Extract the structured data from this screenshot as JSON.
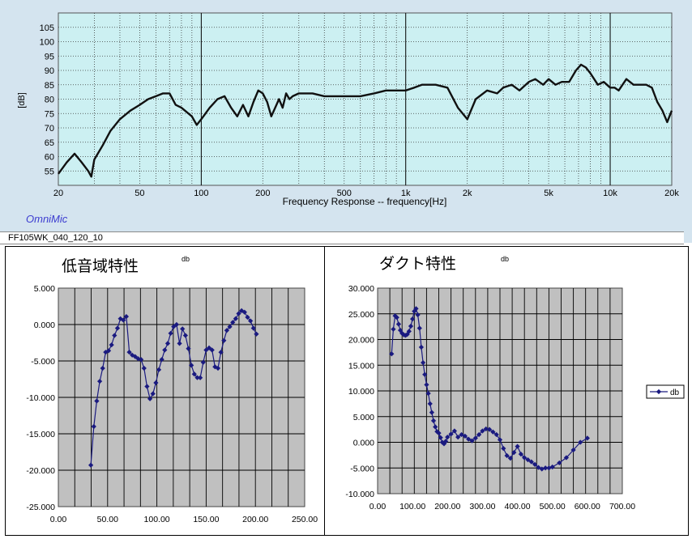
{
  "top": {
    "status_text": "FF105WK_040_120_10",
    "brand": "OmniMic",
    "colors": {
      "panel": "#d4e4ef",
      "plot_bg": "#ccf0f2",
      "curve": "#111111",
      "grid": "#3a3a3a"
    }
  },
  "chart_data": [
    {
      "type": "line",
      "title": "",
      "xlabel": "Frequency Response -- frequency[Hz]",
      "ylabel": "[dB]",
      "x_scale": "log",
      "xlim": [
        20,
        20000
      ],
      "ylim": [
        50,
        110
      ],
      "x_ticks": [
        20,
        50,
        100,
        200,
        500,
        1000,
        2000,
        5000,
        10000,
        20000
      ],
      "x_tick_labels": [
        "20",
        "50",
        "100",
        "200",
        "500",
        "1k",
        "2k",
        "5k",
        "10k",
        "20k"
      ],
      "y_ticks": [
        55,
        60,
        65,
        70,
        75,
        80,
        85,
        90,
        95,
        100,
        105
      ],
      "y_tick_labels": [
        "55",
        "60",
        "65",
        "70",
        "75",
        "80",
        "85",
        "90",
        "95",
        "100",
        "105"
      ],
      "grid": true,
      "series": [
        {
          "x": [
            20,
            22,
            24,
            26,
            28,
            29,
            30,
            33,
            36,
            40,
            45,
            50,
            55,
            60,
            65,
            70,
            75,
            80,
            90,
            95,
            100,
            110,
            120,
            130,
            140,
            150,
            160,
            170,
            180,
            190,
            200,
            210,
            220,
            230,
            240,
            250,
            260,
            270,
            280,
            300,
            320,
            350,
            400,
            450,
            500,
            550,
            600,
            700,
            800,
            900,
            1000,
            1100,
            1200,
            1400,
            1600,
            1800,
            2000,
            2200,
            2500,
            2800,
            3000,
            3300,
            3600,
            4000,
            4300,
            4700,
            5000,
            5400,
            5800,
            6300,
            6800,
            7200,
            7600,
            8000,
            8700,
            9300,
            10000,
            10500,
            11000,
            12000,
            13000,
            14000,
            15000,
            16000,
            17000,
            18000,
            19000,
            20000
          ],
          "y": [
            54,
            58,
            61,
            58,
            55,
            53,
            59,
            64,
            69,
            73,
            76,
            78,
            80,
            81,
            82,
            82,
            78,
            77,
            74,
            71,
            73,
            77,
            80,
            81,
            77,
            74,
            78,
            74,
            79,
            83,
            82,
            79,
            74,
            77,
            80,
            77,
            82,
            80,
            81,
            82,
            82,
            82,
            81,
            81,
            81,
            81,
            81,
            82,
            83,
            83,
            83,
            84,
            85,
            85,
            84,
            77,
            73,
            80,
            83,
            82,
            84,
            85,
            83,
            86,
            87,
            85,
            87,
            85,
            86,
            86,
            90,
            92,
            91,
            89,
            85,
            86,
            84,
            84,
            83,
            87,
            85,
            85,
            85,
            84,
            79,
            76,
            72,
            76
          ]
        }
      ]
    },
    {
      "type": "line",
      "title": "低音域特性",
      "xlabel": "",
      "ylabel": "db",
      "xlim": [
        0,
        250
      ],
      "ylim": [
        -25,
        5
      ],
      "x_ticks": [
        0,
        50,
        100,
        150,
        200,
        250
      ],
      "x_tick_labels": [
        "0.00",
        "50.00",
        "100.00",
        "150.00",
        "200.00",
        "250.00"
      ],
      "y_ticks": [
        -25,
        -20,
        -15,
        -10,
        -5,
        0,
        5
      ],
      "y_tick_labels": [
        "-25.000",
        "-20.000",
        "-15.000",
        "-10.000",
        "-5.000",
        "0.000",
        "5.000"
      ],
      "grid": true,
      "series": [
        {
          "name": "db",
          "color": "#1a1a80",
          "x": [
            33,
            36,
            39,
            42,
            45,
            48,
            51,
            54,
            57,
            60,
            63,
            66,
            69,
            72,
            75,
            78,
            81,
            84,
            87,
            90,
            93,
            96,
            99,
            102,
            105,
            108,
            111,
            114,
            117,
            120,
            123,
            126,
            129,
            132,
            135,
            138,
            141,
            144,
            147,
            150,
            153,
            156,
            159,
            162,
            165,
            168,
            171,
            174,
            177,
            180,
            183,
            186,
            189,
            192,
            195,
            198,
            201
          ],
          "y": [
            -19.3,
            -14.0,
            -10.5,
            -7.8,
            -6.0,
            -3.8,
            -3.6,
            -2.8,
            -1.5,
            -0.5,
            0.8,
            0.6,
            1.1,
            -3.8,
            -4.2,
            -4.4,
            -4.7,
            -4.8,
            -6.0,
            -8.5,
            -10.2,
            -9.5,
            -8.0,
            -6.2,
            -4.8,
            -3.5,
            -2.6,
            -1.2,
            -0.3,
            0.0,
            -2.6,
            -0.6,
            -1.5,
            -3.3,
            -5.6,
            -6.8,
            -7.3,
            -7.3,
            -5.2,
            -3.5,
            -3.2,
            -3.5,
            -5.8,
            -6.0,
            -3.8,
            -2.2,
            -0.8,
            -0.3,
            0.3,
            0.8,
            1.5,
            1.9,
            1.7,
            1.0,
            0.5,
            -0.5,
            -1.3
          ]
        }
      ]
    },
    {
      "type": "line",
      "title": "ダクト特性",
      "xlabel": "",
      "ylabel": "db",
      "xlim": [
        0,
        700
      ],
      "ylim": [
        -10,
        30
      ],
      "x_ticks": [
        0,
        100,
        200,
        300,
        400,
        500,
        600,
        700
      ],
      "x_tick_labels": [
        "0.00",
        "100.00",
        "200.00",
        "300.00",
        "400.00",
        "500.00",
        "600.00",
        "700.00"
      ],
      "y_ticks": [
        -10,
        -5,
        0,
        5,
        10,
        15,
        20,
        25,
        30
      ],
      "y_tick_labels": [
        "-10.000",
        "-5.000",
        "0.000",
        "5.000",
        "10.000",
        "15.000",
        "20.000",
        "25.000",
        "30.000"
      ],
      "legend": "right",
      "grid": true,
      "series": [
        {
          "name": "db",
          "color": "#1a1a80",
          "x": [
            40,
            45,
            50,
            55,
            60,
            65,
            70,
            75,
            80,
            85,
            90,
            95,
            100,
            105,
            110,
            115,
            120,
            125,
            130,
            135,
            140,
            145,
            150,
            155,
            160,
            165,
            170,
            175,
            180,
            185,
            190,
            195,
            200,
            210,
            220,
            230,
            240,
            250,
            260,
            270,
            280,
            290,
            300,
            310,
            320,
            330,
            340,
            350,
            360,
            370,
            380,
            390,
            400,
            410,
            420,
            430,
            440,
            450,
            460,
            470,
            480,
            490,
            500,
            520,
            540,
            560,
            580,
            600
          ],
          "y": [
            17.2,
            22.0,
            24.6,
            24.3,
            23.0,
            21.8,
            21.2,
            20.9,
            20.8,
            21.0,
            21.6,
            22.6,
            24.0,
            25.5,
            26.0,
            24.8,
            22.2,
            18.5,
            15.5,
            13.2,
            11.2,
            9.5,
            7.5,
            5.8,
            4.2,
            3.0,
            2.1,
            1.8,
            0.9,
            0.0,
            -0.3,
            0.2,
            1.0,
            1.6,
            2.2,
            1.0,
            1.5,
            1.2,
            0.6,
            0.3,
            0.8,
            1.5,
            2.2,
            2.6,
            2.5,
            2.0,
            1.5,
            0.5,
            -1.2,
            -2.6,
            -3.1,
            -2.0,
            -0.8,
            -2.3,
            -3.0,
            -3.4,
            -3.8,
            -4.3,
            -4.9,
            -5.2,
            -5.0,
            -5.0,
            -4.8,
            -4.0,
            -3.0,
            -1.5,
            0.0,
            0.8
          ]
        }
      ]
    }
  ]
}
